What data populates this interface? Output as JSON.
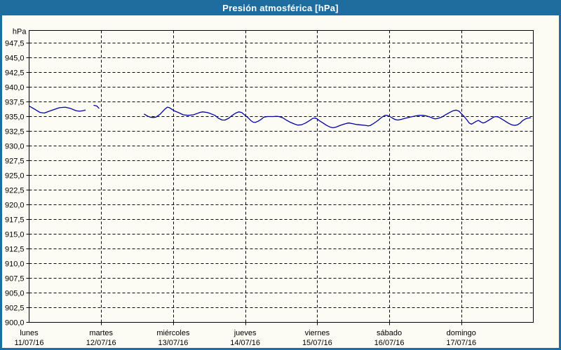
{
  "window": {
    "title": "Presión atmosférica [hPa]"
  },
  "colors": {
    "frame": "#1f6c9f",
    "titlebar_bg": "#1f6c9f",
    "titlebar_text": "#ffffff",
    "content_bg": "#fcfcf5",
    "grid": "#000000",
    "axis": "#000000",
    "line": "#0000a0",
    "label_text": "#000000"
  },
  "chart_data": {
    "type": "line",
    "title": "Presión atmosférica [hPa]",
    "grid": "dashed",
    "legend": "none",
    "y_axis": {
      "unit_label": "hPa",
      "min": 900.0,
      "max_tick": 947.5,
      "tick_step": 2.5,
      "decimal_separator": ",",
      "tick_labels": [
        "947,5",
        "945,0",
        "942,5",
        "940,0",
        "937,5",
        "935,0",
        "932,5",
        "930,0",
        "927,5",
        "925,0",
        "922,5",
        "920,0",
        "917,5",
        "915,0",
        "912,5",
        "910,0",
        "907,5",
        "905,0",
        "902,5",
        "900,0"
      ]
    },
    "x_axis": {
      "unit": "days",
      "days": [
        {
          "name": "lunes",
          "date": "11/07/16"
        },
        {
          "name": "martes",
          "date": "12/07/16"
        },
        {
          "name": "miércoles",
          "date": "13/07/16"
        },
        {
          "name": "jueves",
          "date": "14/07/16"
        },
        {
          "name": "viernes",
          "date": "15/07/16"
        },
        {
          "name": "sábado",
          "date": "16/07/16"
        },
        {
          "name": "domingo",
          "date": "17/07/16"
        }
      ]
    },
    "series": [
      {
        "name": "Presión atmosférica",
        "unit": "hPa",
        "color": "#0000a0",
        "x_unit": "days_from_11_07_16",
        "segments": [
          [
            [
              0.0,
              936.8
            ],
            [
              0.07,
              936.3
            ],
            [
              0.15,
              935.7
            ],
            [
              0.21,
              935.6
            ],
            [
              0.3,
              936.0
            ],
            [
              0.42,
              936.5
            ],
            [
              0.5,
              936.6
            ],
            [
              0.57,
              936.4
            ],
            [
              0.65,
              936.0
            ],
            [
              0.7,
              935.9
            ],
            [
              0.75,
              936.0
            ],
            [
              0.78,
              936.1
            ]
          ],
          [
            [
              0.9,
              936.9
            ],
            [
              0.94,
              936.8
            ],
            [
              0.97,
              936.4
            ]
          ],
          [
            [
              1.6,
              935.4
            ],
            [
              1.64,
              935.1
            ],
            [
              1.68,
              934.9
            ],
            [
              1.72,
              934.85
            ],
            [
              1.76,
              934.9
            ],
            [
              1.82,
              935.4
            ],
            [
              1.88,
              936.2
            ],
            [
              1.92,
              936.6
            ],
            [
              1.95,
              936.5
            ],
            [
              2.01,
              936.0
            ],
            [
              2.07,
              935.7
            ],
            [
              2.14,
              935.3
            ],
            [
              2.21,
              935.2
            ],
            [
              2.28,
              935.3
            ],
            [
              2.33,
              935.5
            ],
            [
              2.37,
              935.7
            ],
            [
              2.41,
              935.8
            ],
            [
              2.47,
              935.7
            ],
            [
              2.52,
              935.5
            ],
            [
              2.58,
              935.2
            ],
            [
              2.63,
              934.7
            ],
            [
              2.68,
              934.4
            ],
            [
              2.72,
              934.4
            ],
            [
              2.77,
              934.7
            ],
            [
              2.82,
              935.2
            ],
            [
              2.87,
              935.6
            ],
            [
              2.91,
              935.8
            ],
            [
              2.95,
              935.7
            ],
            [
              2.99,
              935.3
            ],
            [
              3.04,
              934.8
            ],
            [
              3.08,
              934.3
            ],
            [
              3.11,
              934.05
            ],
            [
              3.14,
              934.0
            ],
            [
              3.18,
              934.2
            ],
            [
              3.22,
              934.5
            ],
            [
              3.26,
              934.9
            ],
            [
              3.31,
              935.0
            ],
            [
              3.39,
              935.0
            ],
            [
              3.44,
              935.05
            ],
            [
              3.47,
              935.0
            ],
            [
              3.52,
              934.8
            ],
            [
              3.57,
              934.4
            ],
            [
              3.63,
              934.0
            ],
            [
              3.69,
              933.7
            ],
            [
              3.73,
              933.55
            ],
            [
              3.78,
              933.6
            ],
            [
              3.84,
              933.9
            ],
            [
              3.89,
              934.3
            ],
            [
              3.94,
              934.7
            ],
            [
              3.97,
              934.75
            ],
            [
              4.0,
              934.6
            ],
            [
              4.03,
              934.3
            ],
            [
              4.08,
              933.9
            ],
            [
              4.13,
              933.5
            ],
            [
              4.18,
              933.2
            ],
            [
              4.22,
              933.1
            ],
            [
              4.26,
              933.2
            ],
            [
              4.32,
              933.5
            ],
            [
              4.37,
              933.7
            ],
            [
              4.41,
              933.85
            ],
            [
              4.44,
              933.9
            ],
            [
              4.49,
              933.8
            ],
            [
              4.54,
              933.65
            ],
            [
              4.59,
              933.6
            ],
            [
              4.63,
              933.55
            ],
            [
              4.67,
              933.5
            ],
            [
              4.71,
              933.4
            ],
            [
              4.74,
              933.5
            ],
            [
              4.78,
              933.8
            ],
            [
              4.84,
              934.3
            ],
            [
              4.9,
              934.9
            ],
            [
              4.94,
              935.2
            ],
            [
              4.97,
              935.2
            ],
            [
              5.01,
              935.0
            ],
            [
              5.05,
              934.7
            ],
            [
              5.08,
              934.5
            ],
            [
              5.12,
              934.4
            ],
            [
              5.16,
              934.5
            ],
            [
              5.22,
              934.7
            ],
            [
              5.29,
              934.9
            ],
            [
              5.36,
              935.1
            ],
            [
              5.42,
              935.2
            ],
            [
              5.47,
              935.2
            ],
            [
              5.52,
              935.1
            ],
            [
              5.57,
              934.9
            ],
            [
              5.61,
              934.7
            ],
            [
              5.64,
              934.6
            ],
            [
              5.68,
              934.7
            ],
            [
              5.73,
              934.9
            ],
            [
              5.78,
              935.3
            ],
            [
              5.84,
              935.7
            ],
            [
              5.89,
              936.0
            ],
            [
              5.93,
              936.1
            ],
            [
              5.97,
              935.9
            ],
            [
              6.0,
              935.5
            ],
            [
              6.04,
              935.0
            ],
            [
              6.08,
              934.4
            ],
            [
              6.11,
              933.9
            ],
            [
              6.14,
              933.7
            ],
            [
              6.17,
              933.9
            ],
            [
              6.21,
              934.2
            ],
            [
              6.24,
              934.35
            ],
            [
              6.27,
              934.1
            ],
            [
              6.3,
              933.9
            ],
            [
              6.33,
              934.0
            ],
            [
              6.37,
              934.3
            ],
            [
              6.41,
              934.6
            ],
            [
              6.45,
              934.9
            ],
            [
              6.48,
              935.0
            ],
            [
              6.52,
              934.9
            ],
            [
              6.56,
              934.6
            ],
            [
              6.6,
              934.3
            ],
            [
              6.65,
              933.9
            ],
            [
              6.7,
              933.6
            ],
            [
              6.74,
              933.5
            ],
            [
              6.78,
              933.6
            ],
            [
              6.82,
              933.9
            ],
            [
              6.85,
              934.3
            ],
            [
              6.89,
              934.6
            ],
            [
              6.93,
              934.75
            ],
            [
              6.96,
              934.8
            ]
          ]
        ]
      }
    ]
  }
}
